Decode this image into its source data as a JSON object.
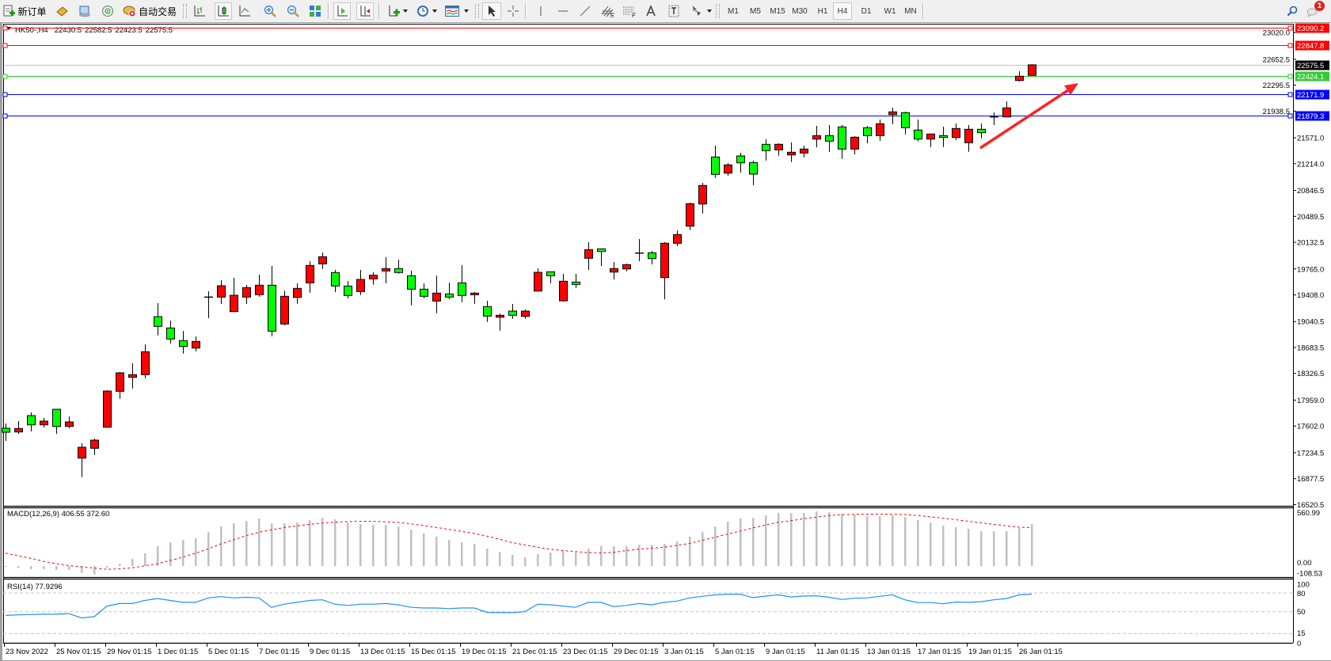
{
  "toolbar": {
    "new_order_label": "新订单",
    "autotrade_label": "自动交易",
    "timeframes": [
      "M1",
      "M5",
      "M15",
      "M30",
      "H1",
      "H4",
      "D1",
      "W1",
      "MN"
    ],
    "active_timeframe": "H4",
    "notification_count": "1",
    "drawing_tools": [
      "cursor",
      "crosshair",
      "vertical-line",
      "horizontal-line",
      "trend-line",
      "fibonacci-channel",
      "fibonacci-levels",
      "text",
      "text-label",
      "arrows"
    ]
  },
  "chart": {
    "symbol": "HK50-,H4",
    "open": "22430.5",
    "high": "22582.5",
    "low": "22423.5",
    "close": "22575.5",
    "up_color": "#ff0000",
    "down_color": "#00ff00",
    "price_ticks": [
      "23020.0",
      "22652.5",
      "22295.5",
      "21938.5",
      "21571.0",
      "21214.0",
      "20846.5",
      "20489.5",
      "20132.5",
      "19765.0",
      "19408.0",
      "19040.5",
      "18683.5",
      "18326.5",
      "17959.0",
      "17602.0",
      "17234.5",
      "16877.5",
      "16520.5"
    ],
    "levels": [
      {
        "price": 23090.2,
        "label": "23090.2",
        "color": "#ff0000",
        "label_bg": "#ff0000"
      },
      {
        "price": 22847.8,
        "label": "22847.8",
        "color": "#ff0000",
        "label_bg": "#ff0000"
      },
      {
        "price": 22575.5,
        "label": "22575.5",
        "color": "#c0c0c0",
        "label_bg": "#000000"
      },
      {
        "price": 22424.1,
        "label": "22424.1",
        "color": "#22cc22",
        "label_bg": "#33cc33"
      },
      {
        "price": 22171.9,
        "label": "22171.9",
        "color": "#0000ff",
        "label_bg": "#0000ff"
      },
      {
        "price": 21879.3,
        "label": "21879.3",
        "color": "#0000ff",
        "label_bg": "#0000ff"
      }
    ],
    "date_labels": [
      "23 Nov 2022",
      "25 Nov 01:15",
      "29 Nov 01:15",
      "1 Dec 01:15",
      "5 Dec 01:15",
      "7 Dec 01:15",
      "9 Dec 01:15",
      "13 Dec 01:15",
      "15 Dec 01:15",
      "19 Dec 01:15",
      "21 Dec 01:15",
      "23 Dec 01:15",
      "29 Dec 01:15",
      "3 Jan 01:15",
      "5 Jan 01:15",
      "9 Jan 01:15",
      "11 Jan 01:15",
      "13 Jan 01:15",
      "17 Jan 01:15",
      "19 Jan 01:15",
      "26 Jan 01:15"
    ],
    "annotation_arrow_color": "#ff2020",
    "candles_ohlc": [
      [
        17571.5,
        17637,
        17397,
        17517
      ],
      [
        17520.3,
        17669.6,
        17495.2,
        17568.2
      ],
      [
        17745.9,
        17789.5,
        17527.9,
        17618.4
      ],
      [
        17618.4,
        17713.2,
        17582.4,
        17669.6
      ],
      [
        17833.1,
        17833.1,
        17495.2,
        17596.6
      ],
      [
        17596.6,
        17735,
        17571.5,
        17658.7
      ],
      [
        17160.6,
        17364.4,
        16899,
        17309.9
      ],
      [
        17295.7,
        17429.8,
        17204.2,
        17408
      ],
      [
        17585.7,
        18094.7,
        17582.4,
        18083.8
      ],
      [
        18080.5,
        18345.4,
        17978.1,
        18334.5
      ],
      [
        18272.4,
        18465.3,
        18119.8,
        18309.4
      ],
      [
        18309.4,
        18726.9,
        18258.2,
        18625.5
      ],
      [
        19108.4,
        19293.7,
        18850.1,
        18974.3
      ],
      [
        18952.5,
        19053.9,
        18737.8,
        18799.9
      ],
      [
        18778.1,
        18912.2,
        18599.4,
        18697.5
      ],
      [
        18675.7,
        18835.9,
        18632.1,
        18767.2
      ],
      [
        19377.6,
        19457.2,
        19086.6,
        19377.6
      ],
      [
        19377.6,
        19609.8,
        19282.8,
        19533.5
      ],
      [
        19177.1,
        19642.5,
        19177.1,
        19402.7
      ],
      [
        19377.6,
        19544.4,
        19282.8,
        19508.4
      ],
      [
        19410.3,
        19686.1,
        19384.2,
        19541.1
      ],
      [
        19541.1,
        19806,
        18839.2,
        18908.9
      ],
      [
        19007,
        19464.8,
        18988.5,
        19388.5
      ],
      [
        19373.3,
        19566.2,
        19286.1,
        19497.5
      ],
      [
        19573.8,
        19871.4,
        19438.7,
        19813.6
      ],
      [
        19835.4,
        19991.3,
        19765.7,
        19933.5
      ],
      [
        19715.5,
        19751.5,
        19446.3,
        19530.2
      ],
      [
        19530.2,
        19598.9,
        19359.1,
        19399.4
      ],
      [
        19453.9,
        19751.5,
        19406,
        19620.7
      ],
      [
        19628.3,
        19718.8,
        19547.7,
        19678.5
      ],
      [
        19737.3,
        19925.9,
        19566.2,
        19770
      ],
      [
        19770,
        19893.2,
        19700.3,
        19715.5
      ],
      [
        19671.9,
        19740.6,
        19264.3,
        19486.6
      ],
      [
        19486.6,
        19566.2,
        19362.4,
        19388.5
      ],
      [
        19323.1,
        19671.9,
        19155.3,
        19432.1
      ],
      [
        19421.2,
        19577.1,
        19351.5,
        19377.6
      ],
      [
        19573.8,
        19816.9,
        19307.9,
        19399.4
      ],
      [
        19410.3,
        19446.3,
        19286.1,
        19432.1
      ],
      [
        19246.8,
        19326.4,
        19035.4,
        19116
      ],
      [
        19100.8,
        19152,
        18915.5,
        19126.9
      ],
      [
        19184.7,
        19282.8,
        19079,
        19126.9
      ],
      [
        19111.7,
        19206.5,
        19079,
        19184.7
      ],
      [
        19460.5,
        19773.3,
        19460.5,
        19718.8
      ],
      [
        19726.4,
        19726.4,
        19569.5,
        19671.9
      ],
      [
        19326.4,
        19697,
        19315.5,
        19595.6
      ],
      [
        19584.7,
        19697,
        19504.1,
        19552
      ],
      [
        19911.7,
        20133,
        19751.5,
        20031.6
      ],
      [
        20042.5,
        20042.5,
        19806,
        20005.5
      ],
      [
        19722.1,
        19860.5,
        19620.7,
        19770
      ],
      [
        19765.7,
        19838.7,
        19733,
        19824.5
      ],
      [
        19983.7,
        20176.6,
        19871.4,
        19983.7
      ],
      [
        19988,
        20013.1,
        19827.8,
        19907.4
      ],
      [
        19645.8,
        20136.3,
        19348.2,
        20118.8
      ],
      [
        20118.8,
        20296.5,
        20081.8,
        20238.7
      ],
      [
        20354.3,
        20678,
        20299.8,
        20663.8
      ],
      [
        20659.5,
        20950.5,
        20528.7,
        20914.5
      ],
      [
        21306.9,
        21462.8,
        21019.2,
        21067.1
      ],
      [
        21084.6,
        21223,
        21048.6,
        21197.9
      ],
      [
        21321.1,
        21364.7,
        21092.2,
        21226.3
      ],
      [
        21230.6,
        21255.7,
        20917.8,
        21070.4
      ],
      [
        21481.3,
        21550,
        21259,
        21394.1
      ],
      [
        21405,
        21495.5,
        21324.4,
        21481.3
      ],
      [
        21335.3,
        21506.4,
        21237.2,
        21372.3
      ],
      [
        21361.4,
        21462.8,
        21302.6,
        21415.9
      ],
      [
        21553.3,
        21735.3,
        21441,
        21601.2
      ],
      [
        21601.2,
        21746.2,
        21375.6,
        21524.9
      ],
      [
        21721.1,
        21746.2,
        21280.8,
        21415.9
      ],
      [
        21415.9,
        21593.6,
        21342.9,
        21579.4
      ],
      [
        21710.2,
        21735.3,
        21495.5,
        21601.2
      ],
      [
        21601.2,
        21822.5,
        21528.2,
        21764.7
      ],
      [
        21891.2,
        21986,
        21757.1,
        21928.2
      ],
      [
        21917.3,
        21931.5,
        21618.7,
        21710.2
      ],
      [
        21677.5,
        21822.5,
        21520.6,
        21553.3
      ],
      [
        21553.3,
        21626.3,
        21444.3,
        21623
      ],
      [
        21601.2,
        21724.4,
        21444.3,
        21575.1
      ],
      [
        21575.1,
        21768,
        21542.4,
        21699.3
      ],
      [
        21503.1,
        21746.2,
        21378.9,
        21688.4
      ],
      [
        21688.4,
        21768,
        21564.2,
        21640.5
      ],
      [
        21858.5,
        21920.6,
        21746.2,
        21858.5
      ],
      [
        21858.5,
        22073.2,
        21855.2,
        21982.7
      ],
      [
        22359.9,
        22487.4,
        22345.7,
        22418.7
      ],
      [
        22430.5,
        22582.5,
        22423.5,
        22575.5
      ]
    ]
  },
  "macd": {
    "label": "MACD(12,26,9) 406.55 372.60",
    "axis_labels": [
      "560.99",
      "0.00",
      "-108.53"
    ],
    "range": [
      -108.53,
      560.99
    ],
    "histogram_color": "#c0c0c0",
    "signal_color": "#ff0000",
    "histogram": [
      -5,
      -20,
      -31,
      -31,
      -38,
      -38,
      -67,
      -82,
      -15,
      23,
      69,
      123,
      192,
      230,
      253,
      269,
      330,
      384,
      415,
      438,
      461,
      415,
      415,
      422,
      445,
      468,
      453,
      422,
      407,
      399,
      399,
      384,
      353,
      315,
      284,
      253,
      230,
      215,
      169,
      138,
      108,
      84,
      115,
      131,
      146,
      131,
      169,
      192,
      192,
      192,
      207,
      207,
      215,
      238,
      284,
      330,
      384,
      430,
      461,
      468,
      492,
      515,
      515,
      515,
      530,
      522,
      507,
      499,
      484,
      484,
      492,
      476,
      445,
      422,
      392,
      376,
      361,
      338,
      338,
      338,
      369,
      406.55
    ],
    "signal": [
      125,
      100,
      75,
      45,
      22,
      5,
      -8,
      -20,
      -32,
      -28,
      -18,
      2,
      23,
      55,
      86,
      125,
      167,
      215,
      255,
      295,
      328,
      352,
      374,
      390,
      405,
      418,
      426,
      432,
      435,
      434,
      430,
      423,
      410,
      392,
      375,
      356,
      336,
      316,
      290,
      260,
      228,
      205,
      182,
      163,
      150,
      140,
      130,
      128,
      133,
      150,
      163,
      173,
      183,
      200,
      220,
      250,
      280,
      310,
      340,
      370,
      400,
      425,
      440,
      460,
      475,
      490,
      498,
      503,
      504,
      504,
      504,
      500,
      490,
      478,
      465,
      450,
      435,
      420,
      405,
      390,
      378,
      372.6
    ]
  },
  "rsi": {
    "label": "RSI(14) 77.9296",
    "axis_labels": [
      "100",
      "80",
      "50",
      "15",
      "0"
    ],
    "levels": [
      80,
      50,
      15
    ],
    "color": "#1e90ff",
    "values": [
      44,
      45,
      45.5,
      46,
      46,
      47,
      40,
      42,
      59,
      63,
      63,
      68,
      71,
      68,
      65,
      65,
      72,
      74,
      72,
      73,
      72,
      57,
      62,
      65,
      68,
      69,
      62,
      60,
      62,
      62,
      63,
      61,
      57,
      56,
      56,
      55,
      56,
      56,
      49,
      48.5,
      48.5,
      50,
      62,
      61,
      59,
      57,
      65,
      65,
      58,
      60,
      63,
      61,
      65,
      67,
      72,
      74.5,
      77,
      78,
      78,
      72.5,
      75,
      77,
      73.5,
      75,
      75.5,
      73,
      69.5,
      71.5,
      72,
      74.5,
      77,
      69,
      64.5,
      64.5,
      62.7,
      65.5,
      65,
      66,
      69,
      71,
      77,
      77.93
    ]
  }
}
